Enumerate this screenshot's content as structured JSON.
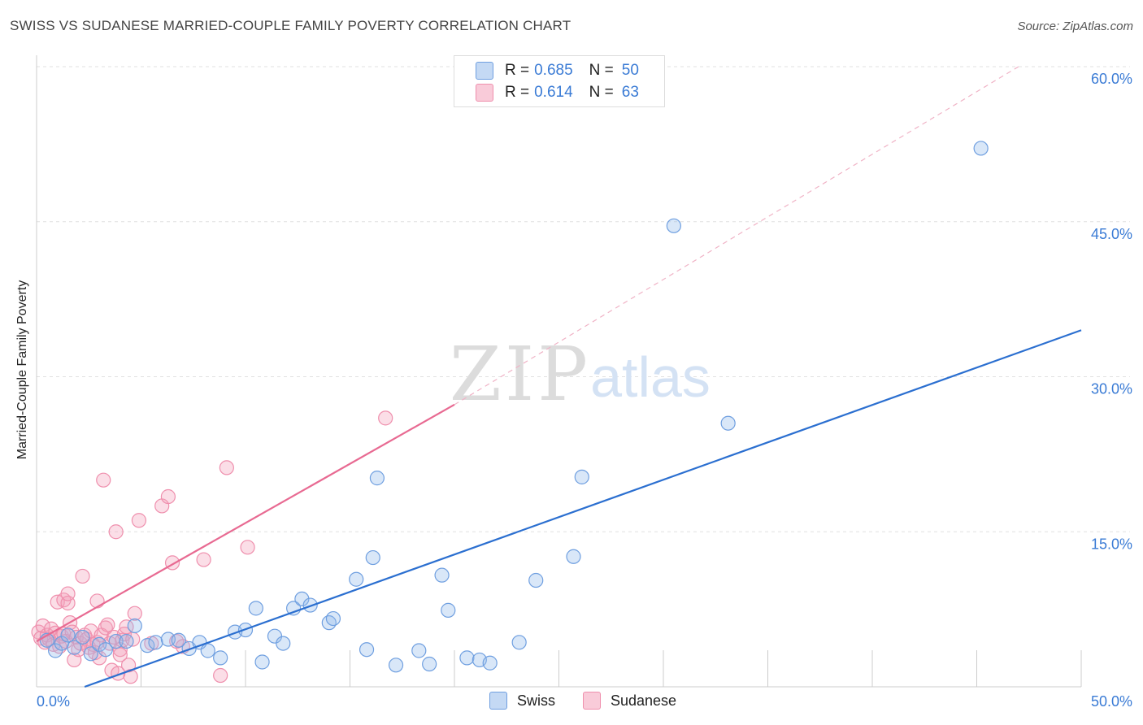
{
  "header": {
    "title": "SWISS VS SUDANESE MARRIED-COUPLE FAMILY POVERTY CORRELATION CHART",
    "source": "Source: ZipAtlas.com"
  },
  "watermark": {
    "zip": "ZIP",
    "atlas": "atlas"
  },
  "legend": {
    "swiss": {
      "r_label": "R =",
      "r_value": "0.685",
      "n_label": "N =",
      "n_value": "50"
    },
    "sudanese": {
      "r_label": "R =",
      "r_value": "0.614",
      "n_label": "N =",
      "n_value": "63"
    }
  },
  "bottom_legend": {
    "swiss": "Swiss",
    "sudanese": "Sudanese"
  },
  "colors": {
    "swiss_fill": "rgba(147,186,235,0.35)",
    "swiss_stroke": "#6f9fe0",
    "swiss_line": "#2b6fd0",
    "sudanese_fill": "rgba(244,160,185,0.35)",
    "sudanese_stroke": "#ef8fad",
    "sudanese_line": "#e86a92",
    "tick_label": "#3a7bd5",
    "grid": "#e0e0e0"
  },
  "chart_data": {
    "type": "scatter",
    "title": "SWISS VS SUDANESE MARRIED-COUPLE FAMILY POVERTY CORRELATION CHART",
    "xlabel": "",
    "ylabel": "Married-Couple Family Poverty",
    "xlim": [
      0,
      50
    ],
    "ylim": [
      0,
      60
    ],
    "x_tick_labels": [
      "0.0%",
      "50.0%"
    ],
    "y_ticks": [
      15,
      30,
      45,
      60
    ],
    "y_tick_labels": [
      "15.0%",
      "30.0%",
      "45.0%",
      "60.0%"
    ],
    "grid": true,
    "legend_position": "top-center",
    "series": [
      {
        "name": "Swiss",
        "r": 0.685,
        "n": 50,
        "trend": {
          "x": [
            2.3,
            50
          ],
          "y": [
            0,
            34.5
          ],
          "style": "solid"
        },
        "points": [
          [
            0.5,
            4.5
          ],
          [
            0.9,
            3.5
          ],
          [
            1.2,
            4.2
          ],
          [
            1.5,
            5.0
          ],
          [
            1.8,
            3.8
          ],
          [
            2.2,
            4.8
          ],
          [
            2.6,
            3.2
          ],
          [
            3.0,
            4.1
          ],
          [
            3.3,
            3.6
          ],
          [
            3.8,
            4.4
          ],
          [
            4.3,
            4.4
          ],
          [
            4.7,
            5.9
          ],
          [
            5.3,
            4.0
          ],
          [
            5.7,
            4.3
          ],
          [
            6.3,
            4.6
          ],
          [
            6.8,
            4.5
          ],
          [
            7.3,
            3.7
          ],
          [
            7.8,
            4.3
          ],
          [
            8.2,
            3.5
          ],
          [
            8.8,
            2.8
          ],
          [
            9.5,
            5.3
          ],
          [
            10.0,
            5.5
          ],
          [
            10.5,
            7.6
          ],
          [
            10.8,
            2.4
          ],
          [
            11.4,
            4.9
          ],
          [
            11.8,
            4.2
          ],
          [
            12.3,
            7.6
          ],
          [
            12.7,
            8.5
          ],
          [
            13.1,
            7.9
          ],
          [
            14.0,
            6.2
          ],
          [
            14.2,
            6.6
          ],
          [
            15.3,
            10.4
          ],
          [
            15.8,
            3.6
          ],
          [
            16.1,
            12.5
          ],
          [
            16.3,
            20.2
          ],
          [
            17.2,
            2.1
          ],
          [
            18.3,
            3.5
          ],
          [
            18.8,
            2.2
          ],
          [
            19.4,
            10.8
          ],
          [
            19.7,
            7.4
          ],
          [
            20.6,
            2.8
          ],
          [
            21.2,
            2.6
          ],
          [
            21.7,
            2.3
          ],
          [
            23.1,
            4.3
          ],
          [
            23.9,
            10.3
          ],
          [
            25.7,
            12.6
          ],
          [
            26.1,
            20.3
          ],
          [
            30.5,
            44.6
          ],
          [
            33.1,
            25.5
          ],
          [
            45.2,
            52.1
          ]
        ]
      },
      {
        "name": "Sudanese",
        "r": 0.614,
        "n": 63,
        "trend": {
          "x": [
            0,
            20.0
          ],
          "y": [
            4.4,
            27.3
          ],
          "style": "solid",
          "extension": {
            "x": [
              20.0,
              47.0
            ],
            "y": [
              27.3,
              60.0
            ],
            "style": "dashed"
          }
        },
        "points": [
          [
            0.1,
            5.3
          ],
          [
            0.2,
            4.7
          ],
          [
            0.3,
            5.9
          ],
          [
            0.4,
            4.3
          ],
          [
            0.5,
            5.0
          ],
          [
            0.6,
            4.6
          ],
          [
            0.7,
            5.6
          ],
          [
            0.8,
            4.1
          ],
          [
            0.9,
            5.2
          ],
          [
            1.0,
            8.2
          ],
          [
            1.1,
            3.9
          ],
          [
            1.2,
            4.9
          ],
          [
            1.3,
            8.4
          ],
          [
            1.3,
            5.1
          ],
          [
            1.4,
            4.4
          ],
          [
            1.5,
            8.1
          ],
          [
            1.5,
            9.0
          ],
          [
            1.6,
            6.2
          ],
          [
            1.7,
            5.3
          ],
          [
            1.8,
            2.6
          ],
          [
            1.9,
            4.8
          ],
          [
            2.0,
            3.6
          ],
          [
            2.1,
            4.2
          ],
          [
            2.2,
            10.7
          ],
          [
            2.3,
            5.0
          ],
          [
            2.4,
            4.6
          ],
          [
            2.5,
            3.8
          ],
          [
            2.6,
            5.4
          ],
          [
            2.7,
            4.1
          ],
          [
            2.8,
            3.3
          ],
          [
            2.9,
            4.3
          ],
          [
            2.9,
            8.3
          ],
          [
            3.0,
            2.8
          ],
          [
            3.1,
            5.0
          ],
          [
            3.2,
            20.0
          ],
          [
            3.3,
            5.7
          ],
          [
            3.4,
            6.0
          ],
          [
            3.5,
            4.2
          ],
          [
            3.6,
            1.6
          ],
          [
            3.7,
            4.8
          ],
          [
            3.8,
            15.0
          ],
          [
            3.9,
            1.3
          ],
          [
            4.0,
            3.6
          ],
          [
            4.1,
            4.5
          ],
          [
            4.2,
            5.1
          ],
          [
            4.3,
            5.8
          ],
          [
            4.4,
            2.1
          ],
          [
            4.5,
            1.0
          ],
          [
            4.6,
            4.6
          ],
          [
            4.7,
            7.1
          ],
          [
            4.9,
            16.1
          ],
          [
            5.5,
            4.2
          ],
          [
            6.0,
            17.5
          ],
          [
            6.3,
            18.4
          ],
          [
            6.5,
            12.0
          ],
          [
            6.7,
            4.4
          ],
          [
            7.0,
            3.9
          ],
          [
            8.0,
            12.3
          ],
          [
            9.1,
            21.2
          ],
          [
            8.8,
            1.1
          ],
          [
            10.1,
            13.5
          ],
          [
            16.7,
            26.0
          ],
          [
            4.0,
            3.1
          ]
        ]
      }
    ]
  }
}
